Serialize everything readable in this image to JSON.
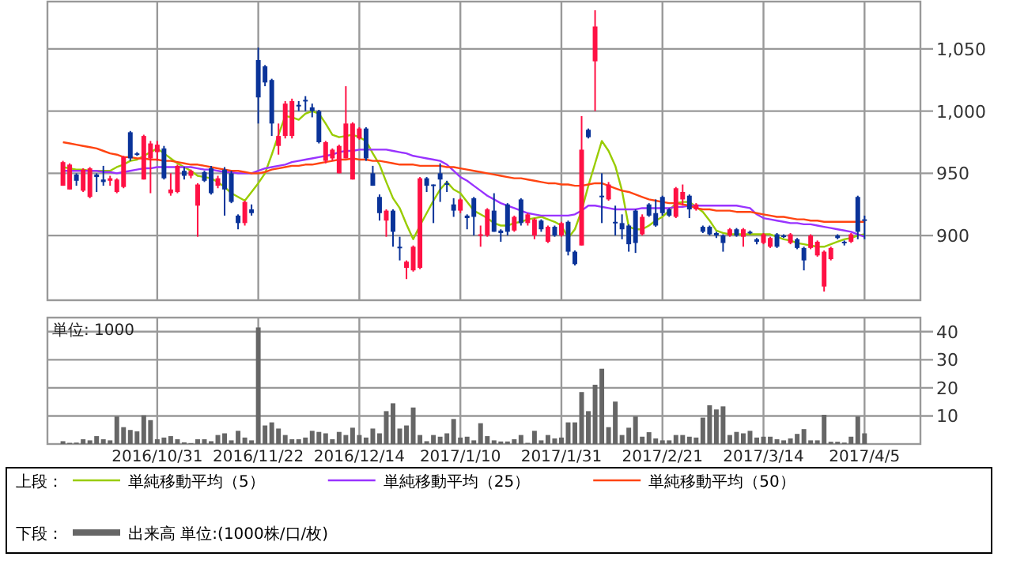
{
  "chart_data": [
    {
      "type": "candlestick",
      "categories": [
        null,
        null,
        null,
        null,
        null,
        null,
        null,
        null,
        null,
        null,
        null,
        null,
        null,
        null,
        "2016/10/31",
        null,
        null,
        null,
        null,
        null,
        null,
        null,
        null,
        null,
        null,
        null,
        null,
        null,
        null,
        "2016/11/22",
        null,
        null,
        null,
        null,
        null,
        null,
        null,
        null,
        null,
        null,
        null,
        null,
        null,
        null,
        "2016/12/14",
        null,
        null,
        null,
        null,
        null,
        null,
        null,
        null,
        null,
        null,
        null,
        null,
        null,
        null,
        "2017/1/10",
        null,
        null,
        null,
        null,
        null,
        null,
        null,
        null,
        null,
        null,
        null,
        null,
        null,
        null,
        "2017/1/31",
        null,
        null,
        null,
        null,
        null,
        null,
        null,
        null,
        null,
        null,
        null,
        null,
        null,
        null,
        "2017/2/21",
        null,
        null,
        null,
        null,
        null,
        null,
        null,
        null,
        null,
        null,
        null,
        null,
        null,
        null,
        "2017/3/14",
        null,
        null,
        null,
        null,
        null,
        null,
        null,
        null,
        null,
        null,
        null,
        null,
        null,
        null,
        "2017/4/5"
      ],
      "ohlc": [
        [
          940,
          960,
          940,
          959
        ],
        [
          937,
          958,
          937,
          957
        ],
        [
          949,
          950,
          940,
          944
        ],
        [
          936,
          954,
          935,
          953
        ],
        [
          931,
          955,
          930,
          954
        ],
        [
          949,
          950,
          935,
          947
        ],
        [
          945,
          956,
          940,
          943
        ],
        [
          944,
          948,
          940,
          946
        ],
        [
          935,
          946,
          934,
          945
        ],
        [
          939,
          964,
          938,
          963
        ],
        [
          983,
          984,
          960,
          962
        ],
        [
          966,
          967,
          964,
          965
        ],
        [
          945,
          981,
          945,
          980
        ],
        [
          962,
          976,
          934,
          974
        ],
        [
          967,
          976,
          960,
          973
        ],
        [
          970,
          972,
          945,
          946
        ],
        [
          934,
          950,
          932,
          937
        ],
        [
          935,
          957,
          934,
          956
        ],
        [
          952,
          955,
          945,
          948
        ],
        [
          948,
          953,
          946,
          952
        ],
        [
          924,
          942,
          899,
          941
        ],
        [
          951,
          952,
          943,
          944
        ],
        [
          954,
          956,
          933,
          934
        ],
        [
          940,
          948,
          938,
          946
        ],
        [
          953,
          955,
          916,
          937
        ],
        [
          950,
          952,
          926,
          927
        ],
        [
          916,
          917,
          905,
          910
        ],
        [
          910,
          928,
          908,
          927
        ],
        [
          921,
          925,
          916,
          918
        ],
        [
          1041,
          1051,
          990,
          1011
        ],
        [
          1036,
          1037,
          1020,
          1023
        ],
        [
          1025,
          1026,
          980,
          990
        ],
        [
          972,
          990,
          965,
          980
        ],
        [
          980,
          1008,
          978,
          1006
        ],
        [
          980,
          1010,
          978,
          1008
        ],
        [
          1005,
          1008,
          1000,
          1004
        ],
        [
          1009,
          1012,
          1000,
          1008
        ],
        [
          1003,
          1006,
          995,
          1000
        ],
        [
          1000,
          1001,
          974,
          975
        ],
        [
          960,
          976,
          958,
          975
        ],
        [
          962,
          970,
          960,
          969
        ],
        [
          950,
          973,
          950,
          972
        ],
        [
          962,
          1020,
          962,
          990
        ],
        [
          945,
          991,
          945,
          990
        ],
        [
          978,
          987,
          977,
          986
        ],
        [
          986,
          987,
          960,
          962
        ],
        [
          950,
          956,
          940,
          940
        ],
        [
          931,
          933,
          912,
          918
        ],
        [
          912,
          921,
          899,
          920
        ],
        [
          920,
          921,
          891,
          903
        ],
        [
          891,
          899,
          880,
          890
        ],
        [
          874,
          880,
          865,
          879
        ],
        [
          872,
          892,
          871,
          891
        ],
        [
          874,
          947,
          873,
          946
        ],
        [
          946,
          947,
          935,
          940
        ],
        [
          941,
          941,
          910,
          940
        ],
        [
          950,
          958,
          927,
          945
        ],
        [
          942,
          944,
          935,
          941
        ],
        [
          925,
          930,
          915,
          920
        ],
        [
          920,
          930,
          918,
          929
        ],
        [
          916,
          917,
          905,
          914
        ],
        [
          930,
          931,
          900,
          915
        ],
        [
          900,
          908,
          891,
          901
        ],
        [
          900,
          922,
          899,
          921
        ],
        [
          920,
          934,
          903,
          903
        ],
        [
          904,
          905,
          895,
          902
        ],
        [
          925,
          926,
          900,
          903
        ],
        [
          904,
          916,
          903,
          915
        ],
        [
          929,
          930,
          908,
          910
        ],
        [
          910,
          918,
          908,
          917
        ],
        [
          900,
          914,
          897,
          913
        ],
        [
          912,
          913,
          903,
          905
        ],
        [
          895,
          908,
          894,
          907
        ],
        [
          907,
          908,
          899,
          900
        ],
        [
          900,
          911,
          899,
          910
        ],
        [
          911,
          912,
          884,
          887
        ],
        [
          887,
          888,
          876,
          877
        ],
        [
          892,
          996,
          892,
          969
        ],
        [
          985,
          986,
          978,
          979
        ],
        [
          1040,
          1081,
          1000,
          1068
        ],
        [
          932,
          950,
          910,
          931
        ],
        [
          929,
          943,
          928,
          941
        ],
        [
          911,
          924,
          900,
          910
        ],
        [
          910,
          917,
          897,
          905
        ],
        [
          908,
          909,
          887,
          893
        ],
        [
          920,
          921,
          886,
          894
        ],
        [
          901,
          917,
          900,
          915
        ],
        [
          925,
          926,
          915,
          916
        ],
        [
          918,
          929,
          907,
          908
        ],
        [
          931,
          932,
          916,
          918
        ],
        [
          921,
          922,
          915,
          916
        ],
        [
          915,
          939,
          914,
          938
        ],
        [
          929,
          941,
          924,
          935
        ],
        [
          932,
          933,
          914,
          921
        ],
        [
          921,
          926,
          920,
          925
        ],
        [
          907,
          908,
          902,
          903
        ],
        [
          907,
          908,
          900,
          901
        ],
        [
          902,
          903,
          898,
          900
        ],
        [
          900,
          901,
          887,
          894
        ],
        [
          900,
          906,
          899,
          905
        ],
        [
          905,
          906,
          899,
          900
        ],
        [
          899,
          906,
          891,
          905
        ],
        [
          903,
          904,
          901,
          902
        ],
        [
          897,
          898,
          893,
          895
        ],
        [
          894,
          902,
          893,
          901
        ],
        [
          891,
          899,
          890,
          898
        ],
        [
          901,
          902,
          890,
          891
        ],
        [
          900,
          901,
          898,
          899
        ],
        [
          894,
          902,
          893,
          901
        ],
        [
          897,
          898,
          889,
          890
        ],
        [
          890,
          891,
          872,
          880
        ],
        [
          890,
          901,
          889,
          900
        ],
        [
          884,
          896,
          883,
          895
        ],
        [
          859,
          888,
          855,
          887
        ],
        [
          881,
          891,
          880,
          890
        ],
        [
          900,
          901,
          897,
          898
        ],
        [
          895,
          896,
          892,
          894
        ],
        [
          895,
          902,
          894,
          901
        ],
        [
          931,
          932,
          897,
          903
        ],
        [
          913,
          916,
          897,
          912
        ]
      ],
      "series": [
        {
          "name": "単純移動平均（5）",
          "type": "line",
          "color": "#99cc00",
          "values": [
            955,
            954,
            953,
            953,
            952,
            952,
            952,
            952,
            955,
            957,
            960,
            961,
            964,
            967,
            970,
            966,
            962,
            958,
            955,
            952,
            948,
            947,
            946,
            943,
            939,
            934,
            931,
            928,
            935,
            942,
            950,
            965,
            981,
            996,
            995,
            993,
            998,
            1000,
            998,
            990,
            981,
            979,
            980,
            981,
            979,
            976,
            966,
            957,
            943,
            930,
            922,
            909,
            897,
            908,
            918,
            928,
            937,
            943,
            937,
            934,
            927,
            920,
            917,
            914,
            910,
            908,
            908,
            910,
            911,
            913,
            914,
            915,
            913,
            911,
            908,
            898,
            905,
            920,
            940,
            958,
            976,
            968,
            956,
            936,
            907,
            905,
            905,
            908,
            912,
            915,
            920,
            926,
            927,
            927,
            923,
            919,
            912,
            904,
            902,
            901,
            901,
            901,
            901,
            901,
            901,
            901,
            899,
            897,
            896,
            894,
            893,
            892,
            891,
            891,
            893,
            895,
            897,
            898,
            900,
            901
          ]
        },
        {
          "name": "単純移動平均（25）",
          "type": "line",
          "color": "#9933ff",
          "values": [
            952,
            952,
            952,
            952,
            952,
            952,
            951,
            951,
            950,
            951,
            952,
            953,
            954,
            954,
            955,
            955,
            955,
            955,
            955,
            955,
            954,
            953,
            953,
            952,
            951,
            951,
            950,
            950,
            950,
            952,
            954,
            955,
            956,
            957,
            959,
            960,
            961,
            962,
            963,
            964,
            965,
            967,
            968,
            968,
            969,
            969,
            969,
            969,
            969,
            968,
            967,
            966,
            964,
            963,
            962,
            961,
            960,
            957,
            952,
            947,
            944,
            940,
            936,
            932,
            929,
            926,
            924,
            922,
            920,
            918,
            917,
            916,
            916,
            916,
            916,
            916,
            917,
            920,
            924,
            924,
            923,
            922,
            921,
            921,
            921,
            921,
            922,
            922,
            922,
            922,
            922,
            923,
            923,
            924,
            924,
            924,
            924,
            924,
            924,
            924,
            924,
            923,
            922,
            917,
            914,
            913,
            912,
            911,
            910,
            910,
            909,
            909,
            908,
            907,
            906,
            905,
            904,
            903,
            901,
            899
          ]
        },
        {
          "name": "単純移動平均（50）",
          "type": "line",
          "color": "#ff4411",
          "values": [
            975,
            974,
            973,
            972,
            971,
            970,
            968,
            966,
            965,
            963,
            963,
            962,
            962,
            961,
            961,
            960,
            960,
            959,
            958,
            957,
            957,
            956,
            955,
            954,
            953,
            952,
            952,
            951,
            950,
            950,
            951,
            953,
            954,
            955,
            956,
            956,
            957,
            957,
            958,
            959,
            960,
            961,
            961,
            962,
            961,
            961,
            960,
            960,
            959,
            958,
            957,
            957,
            957,
            956,
            956,
            956,
            956,
            955,
            955,
            954,
            953,
            952,
            951,
            950,
            949,
            948,
            947,
            946,
            946,
            945,
            944,
            943,
            942,
            942,
            941,
            941,
            940,
            940,
            941,
            942,
            942,
            940,
            938,
            936,
            935,
            933,
            931,
            929,
            928,
            927,
            926,
            926,
            925,
            924,
            922,
            921,
            921,
            920,
            920,
            920,
            919,
            919,
            919,
            918,
            917,
            916,
            915,
            915,
            914,
            913,
            913,
            912,
            912,
            911,
            911,
            911,
            911,
            911,
            911,
            911
          ]
        }
      ],
      "ylim": [
        848,
        1088
      ],
      "yticks": [
        900,
        950,
        {
          "value": 1000,
          "label": "1,000"
        },
        {
          "value": 1050,
          "label": "1,050"
        }
      ],
      "grid": true,
      "tick_labels": "y",
      "legend": "bottom",
      "legend_title": "上段："
    },
    {
      "type": "bar",
      "categories": [
        null,
        null,
        null,
        null,
        null,
        null,
        null,
        null,
        null,
        null,
        null,
        null,
        null,
        null,
        "2016/10/31",
        null,
        null,
        null,
        null,
        null,
        null,
        null,
        null,
        null,
        null,
        null,
        null,
        null,
        null,
        "2016/11/22",
        null,
        null,
        null,
        null,
        null,
        null,
        null,
        null,
        null,
        null,
        null,
        null,
        null,
        null,
        "2016/12/14",
        null,
        null,
        null,
        null,
        null,
        null,
        null,
        null,
        null,
        null,
        null,
        null,
        null,
        null,
        "2017/1/10",
        null,
        null,
        null,
        null,
        null,
        null,
        null,
        null,
        null,
        null,
        null,
        null,
        null,
        null,
        "2017/1/31",
        null,
        null,
        null,
        null,
        null,
        null,
        null,
        null,
        null,
        null,
        null,
        null,
        null,
        null,
        "2017/2/21",
        null,
        null,
        null,
        null,
        null,
        null,
        null,
        null,
        null,
        null,
        null,
        null,
        null,
        null,
        "2017/3/14",
        null,
        null,
        null,
        null,
        null,
        null,
        null,
        null,
        null,
        null,
        null,
        null,
        null,
        null,
        "2017/4/5"
      ],
      "series": [
        {
          "name": "出来高 単位:(1000株/口/枚)",
          "color": "#666666",
          "values": [
            1,
            0.4,
            0.5,
            1.7,
            1.3,
            2.8,
            1.7,
            1.3,
            9.8,
            6,
            5,
            4.5,
            10.2,
            8.5,
            1.7,
            2.3,
            2.8,
            1.7,
            0.6,
            0.3,
            1.7,
            1.7,
            1,
            3.2,
            3.8,
            1.3,
            4.7,
            2.3,
            1.3,
            41.5,
            6.6,
            7.7,
            5.5,
            3.2,
            1.7,
            1.7,
            2.3,
            4.7,
            4.3,
            3.8,
            1.7,
            4.3,
            3.2,
            5.8,
            3.2,
            2.3,
            5.5,
            3.8,
            11.7,
            14.5,
            5.5,
            6.6,
            13,
            3.2,
            1,
            3.2,
            2.6,
            3.8,
            8.9,
            2.3,
            2.6,
            1.3,
            7.4,
            2.8,
            1.3,
            0.9,
            0.9,
            1.7,
            3.2,
            0.4,
            4.7,
            1.3,
            3.2,
            2,
            2.3,
            7.7,
            7.7,
            18.5,
            11.7,
            21.1,
            26.8,
            6,
            15.1,
            3.2,
            5.8,
            9.8,
            2.6,
            4.2,
            2,
            1.3,
            1.3,
            3.2,
            3.2,
            2.6,
            2.3,
            9.4,
            13.8,
            12.3,
            13.4,
            3.2,
            4.3,
            3.8,
            4.7,
            2.3,
            2.6,
            2.6,
            1.7,
            1.3,
            2,
            3.6,
            5.3,
            1.3,
            1.3,
            10.4,
            0.8,
            0.8,
            0.5,
            2.6,
            9.8,
            3.8
          ]
        }
      ],
      "ylim": [
        0,
        45
      ],
      "yticks": [
        10,
        20,
        30,
        40
      ],
      "grid": true,
      "legend": "bottom",
      "legend_title": "下段：",
      "annotations": [
        "単位: 1000"
      ]
    }
  ]
}
